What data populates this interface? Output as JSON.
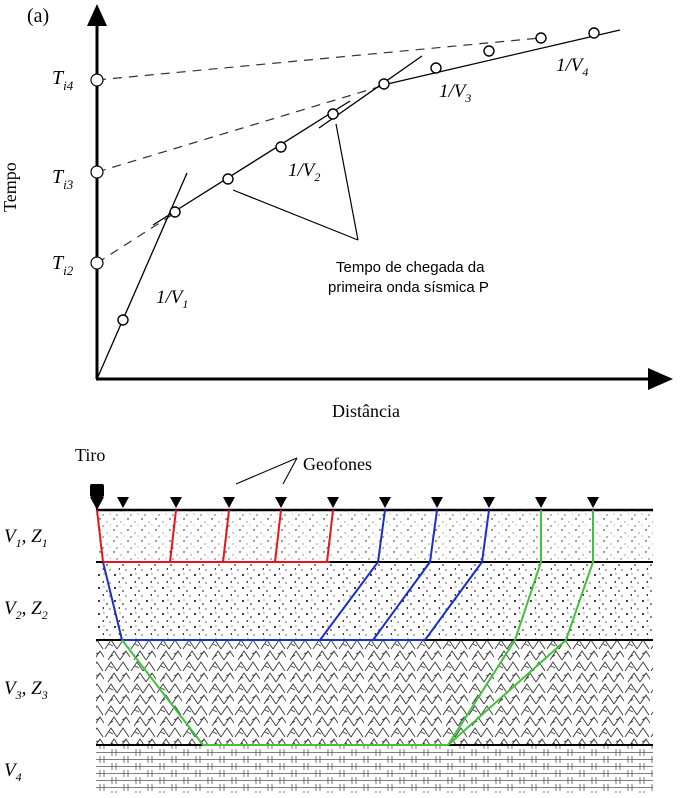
{
  "panel_label": "(a)",
  "graph": {
    "y_axis_label": "Tempo",
    "x_axis_label": "Distância",
    "intercepts": [
      {
        "letter": "T",
        "sub": "i4"
      },
      {
        "letter": "T",
        "sub": "i3"
      },
      {
        "letter": "T",
        "sub": "i2"
      }
    ],
    "slopes": [
      {
        "text": "1/V",
        "sub": "1"
      },
      {
        "text": "1/V",
        "sub": "2"
      },
      {
        "text": "1/V",
        "sub": "3"
      },
      {
        "text": "1/V",
        "sub": "4"
      }
    ],
    "annotation_line1": "Tempo de chegada da",
    "annotation_line2": "primeira onda sísmica P"
  },
  "section": {
    "shot_label": "Tiro",
    "geophones_label": "Geofones",
    "layers": [
      {
        "v": "V",
        "v_sub": "1",
        "sep": ", ",
        "z": "Z",
        "z_sub": "1"
      },
      {
        "v": "V",
        "v_sub": "2",
        "sep": ", ",
        "z": "Z",
        "z_sub": "2"
      },
      {
        "v": "V",
        "v_sub": "3",
        "sep": ", ",
        "z": "Z",
        "z_sub": "3"
      },
      {
        "v": "V",
        "v_sub": "4",
        "sep": "",
        "z": "",
        "z_sub": ""
      }
    ],
    "colors": {
      "layer1_ray": "#e8141b",
      "layer2_ray": "#1b2fc8",
      "layer3_ray": "#3fc33a"
    }
  }
}
